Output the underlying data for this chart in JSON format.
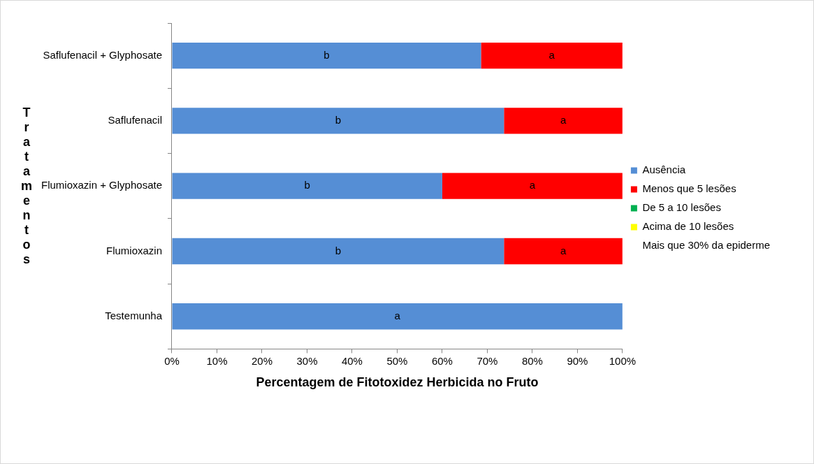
{
  "chart_data": {
    "type": "bar",
    "orientation": "horizontal",
    "stacked": true,
    "xlabel": "Percentagem de Fitotoxidez Herbicida no Fruto",
    "ylabel": "Tratamentos",
    "categories": [
      "Saflufenacil + Glyphosate",
      "Saflufenacil",
      "Flumioxazin + Glyphosate",
      "Flumioxazin",
      "Testemunha"
    ],
    "series": [
      {
        "name": "Ausência",
        "color": "#558ed5",
        "values": [
          68.6,
          73.7,
          60.0,
          73.7,
          100
        ],
        "value_labels": [
          "b",
          "b",
          "b",
          "b",
          "a"
        ]
      },
      {
        "name": "Menos que 5 lesões",
        "color": "#ff0000",
        "values": [
          31.4,
          26.3,
          40.0,
          26.3,
          0
        ],
        "value_labels": [
          "a",
          "a",
          "a",
          "a",
          null
        ]
      },
      {
        "name": "De 5 a 10 lesões",
        "color": "#00b050",
        "values": [
          0,
          0,
          0,
          0,
          0
        ]
      },
      {
        "name": "Acima de 10 lesões",
        "color": "#ffff00",
        "values": [
          0,
          0,
          0,
          0,
          0
        ]
      },
      {
        "name": "Mais que 30% da epiderme",
        "values": [
          0,
          0,
          0,
          0,
          0
        ]
      }
    ],
    "xlim": [
      0,
      100
    ],
    "xticks": [
      {
        "value": 0,
        "label": "0%"
      },
      {
        "value": 10,
        "label": "10%"
      },
      {
        "value": 20,
        "label": "20%"
      },
      {
        "value": 30,
        "label": "30%"
      },
      {
        "value": 40,
        "label": "40%"
      },
      {
        "value": 50,
        "label": "50%"
      },
      {
        "value": 60,
        "label": "60%"
      },
      {
        "value": 70,
        "label": "70%"
      },
      {
        "value": 80,
        "label": "80%"
      },
      {
        "value": 90,
        "label": "90%"
      },
      {
        "value": 100,
        "label": "100%"
      }
    ],
    "grid": false,
    "legend": "right"
  }
}
